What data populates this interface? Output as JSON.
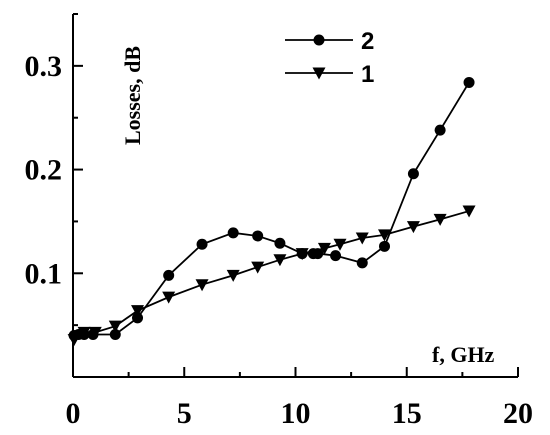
{
  "chart_data": {
    "type": "line",
    "title": "",
    "xlabel": "f, GHz",
    "ylabel": "Losses,  dB",
    "xlim": [
      0,
      20
    ],
    "ylim": [
      0,
      0.35
    ],
    "x_ticks": [
      0,
      5,
      10,
      15,
      20
    ],
    "x_tick_labels": [
      "0",
      "5",
      "10",
      "15",
      "20"
    ],
    "y_ticks": [
      0.1,
      0.2,
      0.3
    ],
    "y_tick_labels": [
      "0.1",
      "0.2",
      "0.3"
    ],
    "grid": false,
    "legend_position": "top-center",
    "series": [
      {
        "name": "2",
        "marker": "circle",
        "color": "#000000",
        "x": [
          0.05,
          0.25,
          0.5,
          0.9,
          1.9,
          2.9,
          4.3,
          5.8,
          7.2,
          8.3,
          9.3,
          10.3,
          10.8,
          11.0,
          11.8,
          13.0,
          14.0,
          15.3,
          16.5,
          17.8
        ],
        "y": [
          0.04,
          0.041,
          0.041,
          0.041,
          0.041,
          0.057,
          0.098,
          0.128,
          0.139,
          0.136,
          0.129,
          0.119,
          0.119,
          0.119,
          0.117,
          0.11,
          0.126,
          0.196,
          0.238,
          0.284
        ]
      },
      {
        "name": "1",
        "marker": "triangle-down",
        "color": "#000000",
        "x": [
          0.05,
          0.5,
          1.0,
          1.9,
          2.9,
          4.3,
          5.8,
          7.2,
          8.3,
          9.3,
          10.3,
          11.3,
          12.0,
          13.0,
          14.0,
          15.3,
          16.5,
          17.8
        ],
        "y": [
          0.036,
          0.043,
          0.043,
          0.049,
          0.064,
          0.077,
          0.089,
          0.098,
          0.106,
          0.113,
          0.119,
          0.124,
          0.128,
          0.134,
          0.137,
          0.145,
          0.152,
          0.16
        ]
      }
    ]
  }
}
